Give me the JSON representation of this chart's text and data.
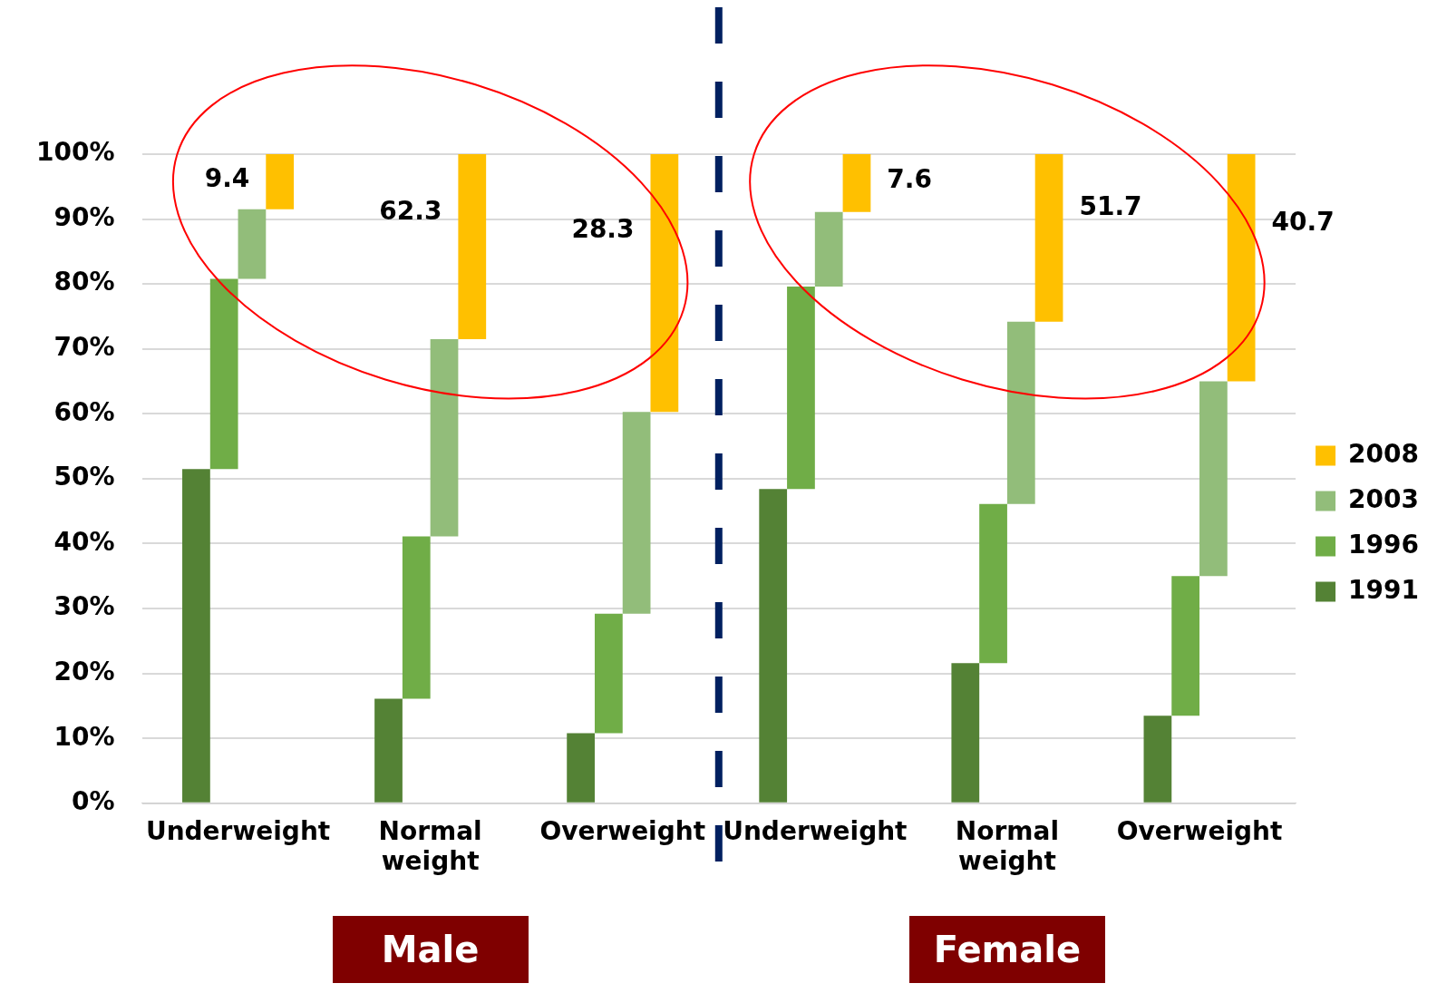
{
  "chart_data": {
    "type": "bar",
    "categories": [
      "Underweight",
      "Normal weight",
      "Overweight",
      "Underweight",
      "Normal weight",
      "Overweight"
    ],
    "series": [
      {
        "name": "1991",
        "color": "#548235",
        "base": [
          0,
          0,
          0,
          0,
          0,
          0
        ],
        "values": [
          51.5,
          16.1,
          10.8,
          48.4,
          21.6,
          13.5
        ]
      },
      {
        "name": "1996",
        "color": "#70ad47",
        "base": [
          51.5,
          16.1,
          10.8,
          48.4,
          21.6,
          13.5
        ],
        "values": [
          29.3,
          25,
          18.4,
          31.2,
          24.5,
          21.5
        ]
      },
      {
        "name": "2003",
        "color": "#92bd7a",
        "base": [
          80.8,
          41.1,
          29.2,
          79.6,
          46.1,
          35
        ],
        "values": [
          10.7,
          30.4,
          31.1,
          11.5,
          28.1,
          30
        ]
      },
      {
        "name": "2008",
        "color": "#ffc000",
        "base": [
          91.5,
          71.5,
          60.3,
          91.1,
          74.2,
          65
        ],
        "values": [
          8.5,
          28.5,
          39.7,
          8.9,
          25.8,
          35
        ]
      }
    ],
    "ylim": [
      0,
      100
    ],
    "yticks": [
      {
        "value": 0,
        "label": "0%"
      },
      {
        "value": 10,
        "label": "10%"
      },
      {
        "value": 20,
        "label": "20%"
      },
      {
        "value": 30,
        "label": "30%"
      },
      {
        "value": 40,
        "label": "40%"
      },
      {
        "value": 50,
        "label": "50%"
      },
      {
        "value": 60,
        "label": "60%"
      },
      {
        "value": 70,
        "label": "70%"
      },
      {
        "value": 80,
        "label": "80%"
      },
      {
        "value": 90,
        "label": "90%"
      },
      {
        "value": 100,
        "label": "100%"
      }
    ],
    "grid": "y",
    "legend": "right",
    "annotations": [
      "9.4",
      "62.3",
      "28.3",
      "7.6",
      "51.7",
      "40.7",
      "Male",
      "Female"
    ]
  }
}
